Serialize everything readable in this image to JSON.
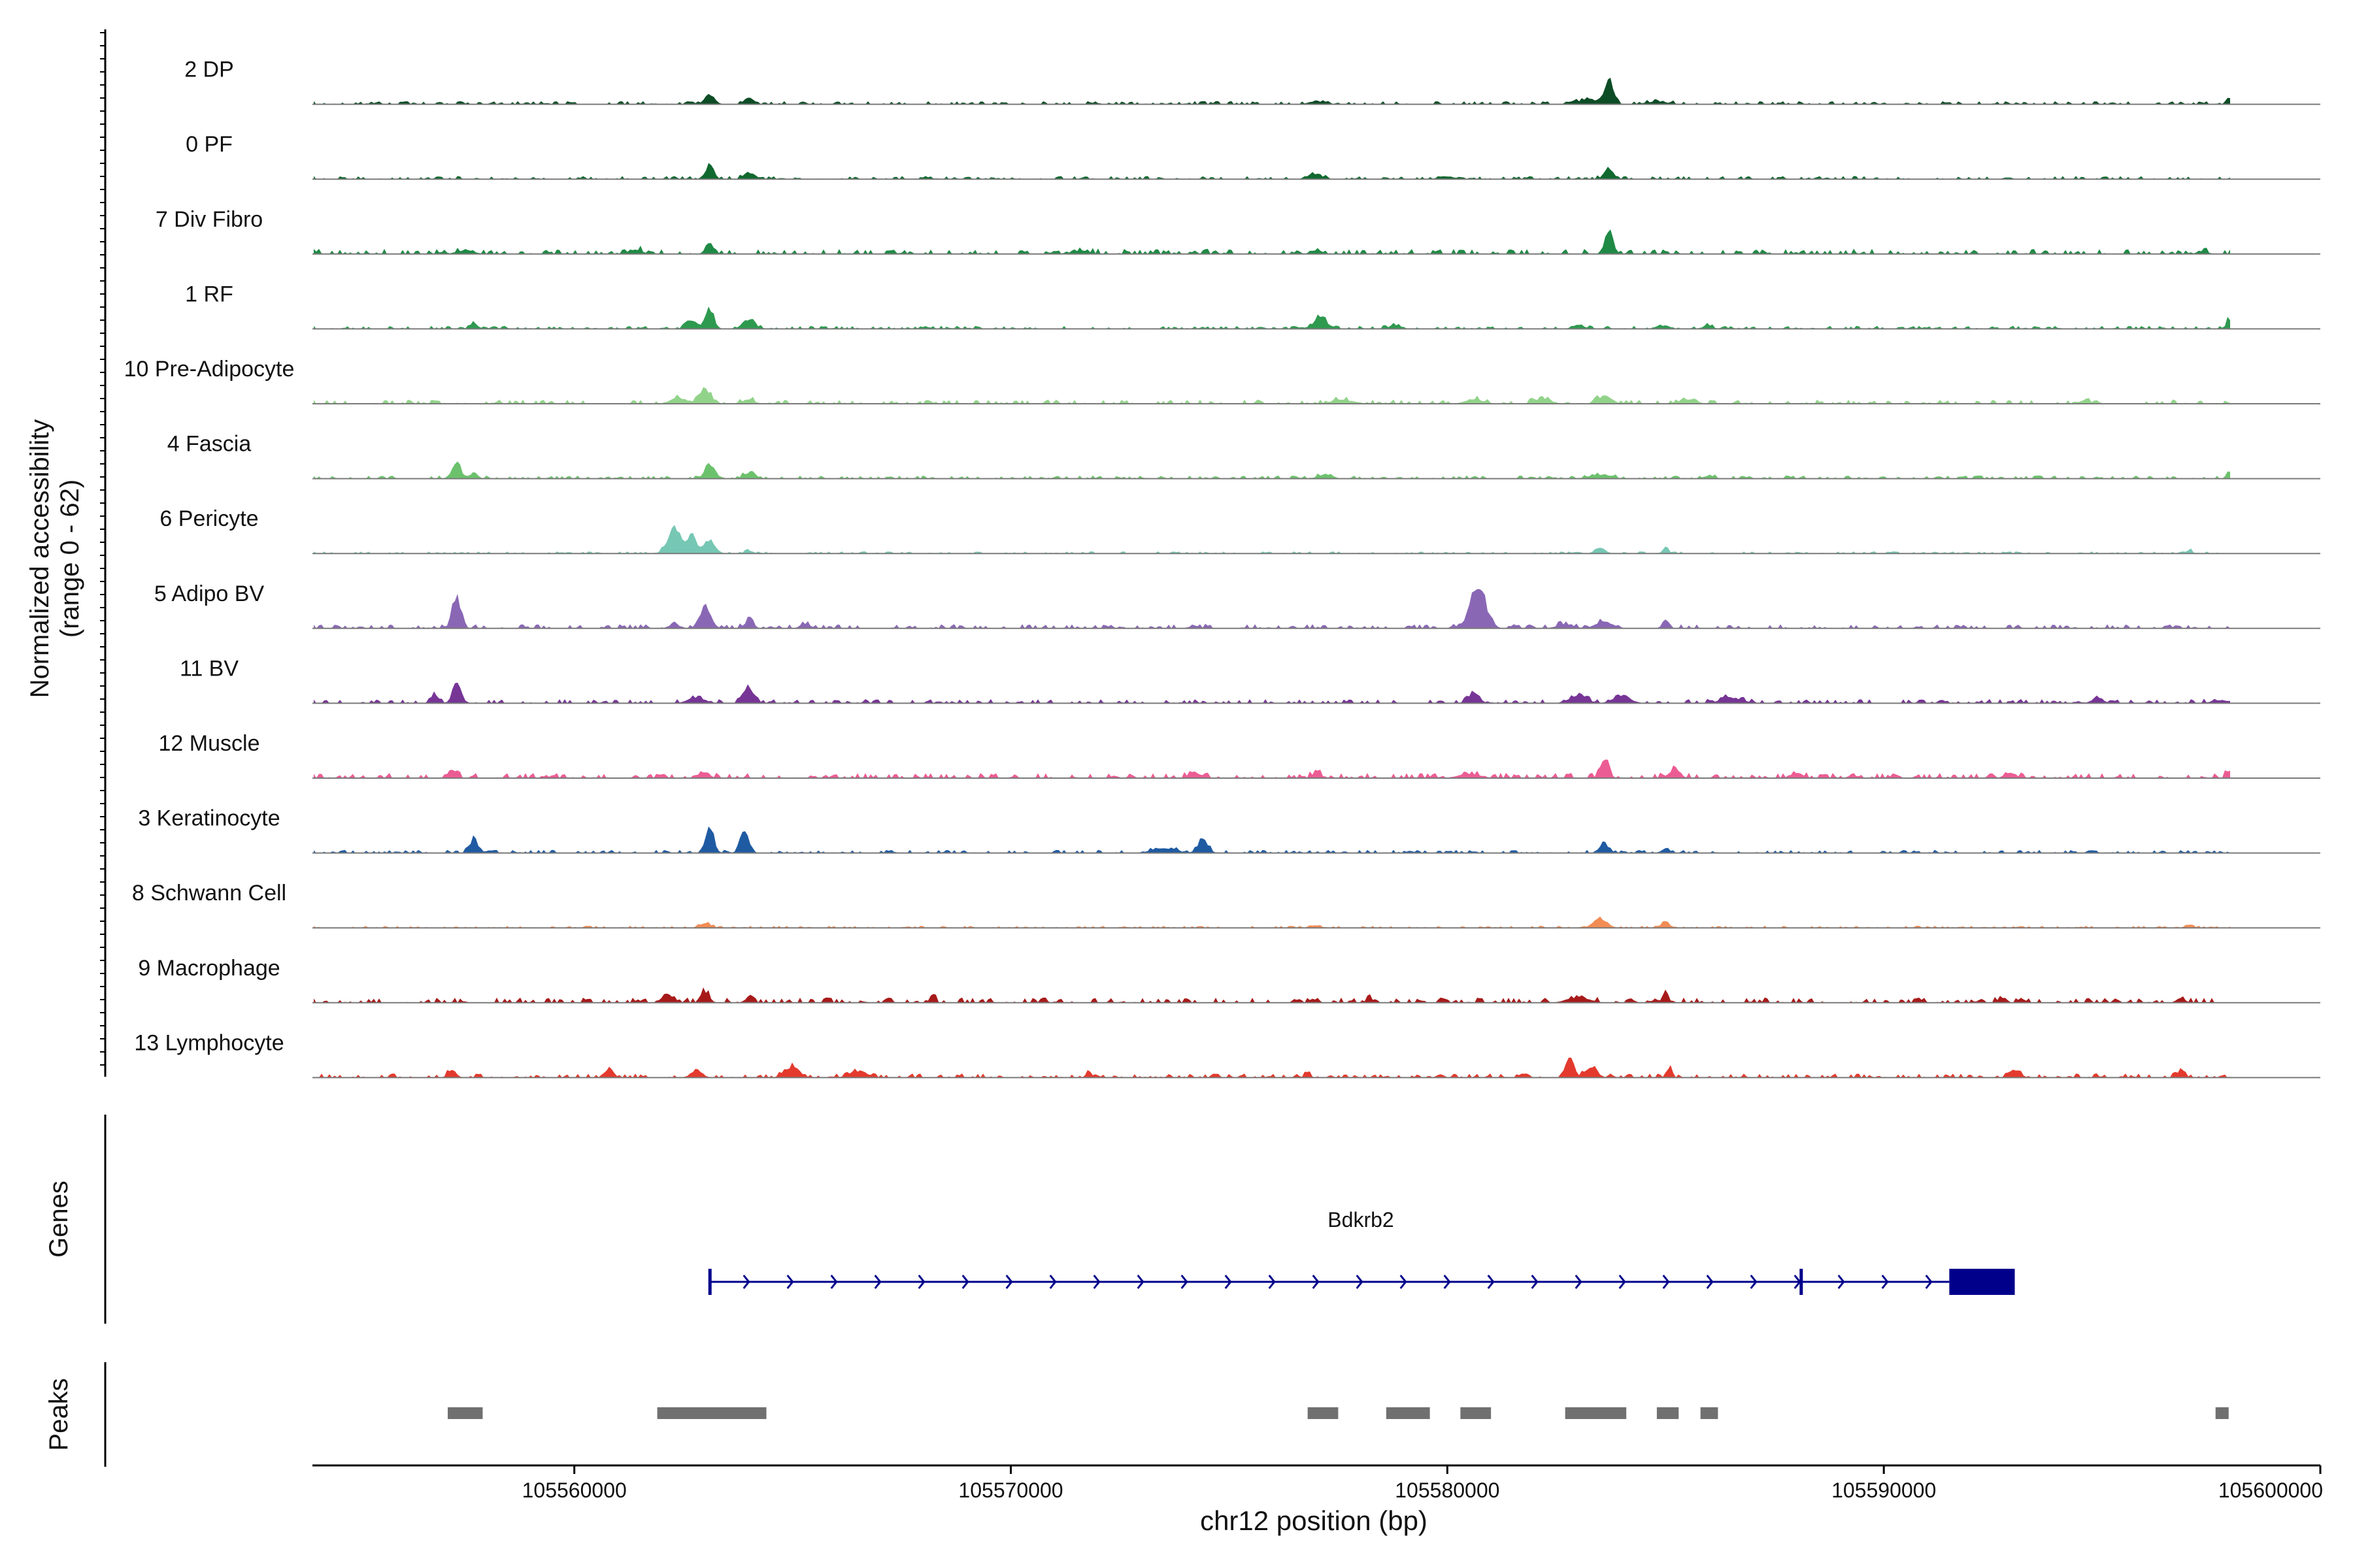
{
  "chart_data": {
    "type": "area",
    "title": "",
    "ylabel": "Normalized accessibility",
    "ylabel_range": "(range 0 - 62)",
    "ylim": [
      0,
      62
    ],
    "xlabel": "chr12 position (bp)",
    "xlim": [
      105554000,
      105600000
    ],
    "x_ticks": [
      105560000,
      105570000,
      105580000,
      105590000,
      105600000
    ],
    "x_tick_labels": [
      "105560000",
      "105570000",
      "105580000",
      "105590000",
      "105600000"
    ],
    "tracks": [
      {
        "name": "2 DP",
        "color": "#0d4d26",
        "bg": 0.03,
        "peaks": [
          [
            105563100,
            0.13,
            180
          ],
          [
            105564000,
            0.12,
            160
          ],
          [
            105577000,
            0.05,
            250
          ],
          [
            105583700,
            0.36,
            170
          ],
          [
            105583200,
            0.08,
            300
          ],
          [
            105597900,
            0.06,
            100
          ],
          [
            105584800,
            0.04,
            400
          ]
        ]
      },
      {
        "name": "0 PF",
        "color": "#10692f",
        "bg": 0.03,
        "peaks": [
          [
            105563100,
            0.22,
            150
          ],
          [
            105564000,
            0.09,
            180
          ],
          [
            105577000,
            0.08,
            200
          ],
          [
            105583700,
            0.17,
            170
          ],
          [
            105598000,
            0.06,
            80
          ],
          [
            105580000,
            0.04,
            300
          ]
        ]
      },
      {
        "name": "7 Div Fibro",
        "color": "#1f8a45",
        "bg": 0.05,
        "peaks": [
          [
            105563100,
            0.16,
            150
          ],
          [
            105561400,
            0.07,
            250
          ],
          [
            105583700,
            0.36,
            140
          ],
          [
            105557500,
            0.06,
            300
          ],
          [
            105571600,
            0.05,
            300
          ],
          [
            105577000,
            0.06,
            200
          ],
          [
            105597300,
            0.04,
            200
          ]
        ]
      },
      {
        "name": "1 RF",
        "color": "#2e9a4f",
        "bg": 0.03,
        "peaks": [
          [
            105557700,
            0.08,
            150
          ],
          [
            105563100,
            0.32,
            150
          ],
          [
            105562700,
            0.12,
            200
          ],
          [
            105564000,
            0.15,
            200
          ],
          [
            105577100,
            0.18,
            220
          ],
          [
            105578800,
            0.06,
            200
          ],
          [
            105583000,
            0.07,
            200
          ],
          [
            105585000,
            0.06,
            150
          ],
          [
            105586000,
            0.05,
            150
          ],
          [
            105597900,
            0.19,
            80
          ]
        ]
      },
      {
        "name": "10 Pre-Adipocyte",
        "color": "#92d38a",
        "bg": 0.04,
        "peaks": [
          [
            105563000,
            0.22,
            200
          ],
          [
            105562400,
            0.09,
            300
          ],
          [
            105564000,
            0.07,
            200
          ],
          [
            105577600,
            0.06,
            400
          ],
          [
            105580600,
            0.07,
            300
          ],
          [
            105583600,
            0.12,
            250
          ],
          [
            105582200,
            0.07,
            300
          ],
          [
            105585500,
            0.07,
            300
          ],
          [
            105594600,
            0.05,
            200
          ]
        ]
      },
      {
        "name": "4 Fascia",
        "color": "#6cc26c",
        "bg": 0.03,
        "peaks": [
          [
            105557300,
            0.22,
            170
          ],
          [
            105557700,
            0.08,
            150
          ],
          [
            105563100,
            0.24,
            160
          ],
          [
            105564000,
            0.09,
            200
          ],
          [
            105577200,
            0.07,
            250
          ],
          [
            105583500,
            0.06,
            400
          ],
          [
            105586000,
            0.05,
            200
          ],
          [
            105597900,
            0.09,
            80
          ]
        ]
      },
      {
        "name": "6 Pericyte",
        "color": "#76c7b4",
        "bg": 0.02,
        "peaks": [
          [
            105562300,
            0.38,
            250
          ],
          [
            105562700,
            0.3,
            150
          ],
          [
            105563100,
            0.2,
            200
          ],
          [
            105564000,
            0.04,
            150
          ],
          [
            105583500,
            0.07,
            200
          ],
          [
            105585000,
            0.1,
            100
          ],
          [
            105597000,
            0.05,
            100
          ]
        ]
      },
      {
        "name": "5 Adipo BV",
        "color": "#8a67b5",
        "bg": 0.04,
        "peaks": [
          [
            105557300,
            0.45,
            160
          ],
          [
            105563000,
            0.3,
            200
          ],
          [
            105562300,
            0.06,
            200
          ],
          [
            105564000,
            0.13,
            150
          ],
          [
            105565300,
            0.06,
            200
          ],
          [
            105580700,
            0.62,
            280
          ],
          [
            105583600,
            0.1,
            300
          ],
          [
            105582700,
            0.06,
            300
          ],
          [
            105585000,
            0.13,
            120
          ],
          [
            105574200,
            0.04,
            200
          ]
        ]
      },
      {
        "name": "11 BV",
        "color": "#773596",
        "bg": 0.04,
        "peaks": [
          [
            105557300,
            0.36,
            140
          ],
          [
            105556800,
            0.12,
            150
          ],
          [
            105564000,
            0.24,
            200
          ],
          [
            105562800,
            0.09,
            300
          ],
          [
            105580600,
            0.16,
            200
          ],
          [
            105583000,
            0.12,
            300
          ],
          [
            105584000,
            0.12,
            300
          ],
          [
            105586500,
            0.08,
            400
          ],
          [
            105594900,
            0.08,
            200
          ],
          [
            105597700,
            0.05,
            300
          ]
        ]
      },
      {
        "name": "12 Muscle",
        "color": "#ec5c94",
        "bg": 0.05,
        "peaks": [
          [
            105557200,
            0.12,
            150
          ],
          [
            105563000,
            0.1,
            150
          ],
          [
            105574200,
            0.09,
            200
          ],
          [
            105577000,
            0.09,
            150
          ],
          [
            105583600,
            0.3,
            150
          ],
          [
            105585200,
            0.12,
            200
          ],
          [
            105588000,
            0.08,
            200
          ],
          [
            105592900,
            0.09,
            200
          ],
          [
            105597900,
            0.1,
            100
          ],
          [
            105580500,
            0.06,
            400
          ]
        ]
      },
      {
        "name": "3 Keratinocyte",
        "color": "#1f5ba3",
        "bg": 0.03,
        "peaks": [
          [
            105557700,
            0.22,
            150
          ],
          [
            105563100,
            0.4,
            150
          ],
          [
            105563900,
            0.32,
            160
          ],
          [
            105573500,
            0.08,
            400
          ],
          [
            105574400,
            0.2,
            180
          ],
          [
            105583600,
            0.14,
            170
          ],
          [
            105585000,
            0.07,
            150
          ]
        ]
      },
      {
        "name": "8 Schwann Cell",
        "color": "#f28c55",
        "bg": 0.02,
        "peaks": [
          [
            105563000,
            0.07,
            200
          ],
          [
            105583500,
            0.14,
            250
          ],
          [
            105585000,
            0.09,
            120
          ],
          [
            105597000,
            0.05,
            150
          ],
          [
            105577000,
            0.03,
            200
          ]
        ]
      },
      {
        "name": "9 Macrophage",
        "color": "#a81a1a",
        "bg": 0.05,
        "peaks": [
          [
            105563000,
            0.17,
            150
          ],
          [
            105562200,
            0.1,
            200
          ],
          [
            105564000,
            0.07,
            150
          ],
          [
            105568200,
            0.08,
            120
          ],
          [
            105585000,
            0.18,
            100
          ],
          [
            105583000,
            0.08,
            400
          ],
          [
            105592700,
            0.08,
            150
          ],
          [
            105596800,
            0.07,
            150
          ],
          [
            105578200,
            0.06,
            100
          ]
        ]
      },
      {
        "name": "13 Lymphocyte",
        "color": "#e33a2d",
        "bg": 0.04,
        "peaks": [
          [
            105557200,
            0.12,
            150
          ],
          [
            105560800,
            0.14,
            150
          ],
          [
            105562800,
            0.12,
            200
          ],
          [
            105565000,
            0.16,
            250
          ],
          [
            105566500,
            0.1,
            300
          ],
          [
            105571800,
            0.09,
            100
          ],
          [
            105576800,
            0.08,
            100
          ],
          [
            105582800,
            0.3,
            150
          ],
          [
            105583300,
            0.18,
            200
          ],
          [
            105585100,
            0.2,
            80
          ],
          [
            105593000,
            0.12,
            200
          ],
          [
            105596800,
            0.09,
            150
          ]
        ]
      }
    ],
    "genes_label": "Genes",
    "gene": {
      "name": "Bdkrb2",
      "start": 105563100,
      "end": 105593000,
      "exon1": [
        105563100,
        105563200
      ],
      "exon2": [
        105588100,
        105588200
      ],
      "last_exon": [
        105591500,
        105593000
      ]
    },
    "peaks_label": "Peaks",
    "peaks": [
      [
        105557100,
        105557900
      ],
      [
        105561900,
        105564400
      ],
      [
        105576800,
        105577500
      ],
      [
        105578600,
        105579600
      ],
      [
        105580300,
        105581000
      ],
      [
        105582700,
        105584100
      ],
      [
        105584800,
        105585300
      ],
      [
        105585800,
        105586200
      ],
      [
        105597600,
        105597900
      ]
    ]
  },
  "colors": {
    "gene": "#00008b",
    "peak": "#707070",
    "axis": "#000000",
    "baseline": "#7a7a7a"
  }
}
